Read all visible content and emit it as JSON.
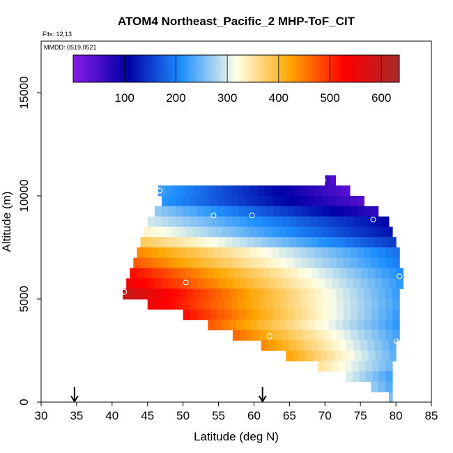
{
  "chart_data": {
    "type": "heatmap",
    "title": "ATOM4 Northeast_Pacific_2 MHP-ToF_CIT",
    "flights_label": "Flts: 12,13",
    "dates_label": "MMDD: 0519,0521",
    "xlabel": "Latitude (deg N)",
    "ylabel": "Altitude (m)",
    "xlim": [
      30,
      85
    ],
    "ylim": [
      0,
      17500
    ],
    "x_ticks": [
      "30",
      "35",
      "40",
      "45",
      "50",
      "55",
      "60",
      "65",
      "70",
      "75",
      "80",
      "85"
    ],
    "y_ticks": [
      "0",
      "5000",
      "10000",
      "15000"
    ],
    "colorbar": {
      "range": [
        0,
        635
      ],
      "ticks": [
        "100",
        "200",
        "300",
        "400",
        "500",
        "600"
      ],
      "colors": [
        "#8a1ae8",
        "#0000a6",
        "#1e90ff",
        "#ffffe6",
        "#ffa500",
        "#ff0000",
        "#a52a2a"
      ]
    },
    "arrows_latitude": [
      34.7,
      61.2
    ],
    "rows": [
      {
        "alt": 10750,
        "x0": 70,
        "x1": 71.5,
        "v0": 55,
        "v1": 45
      },
      {
        "alt": 10250,
        "x0": 46.5,
        "x1": 73.5,
        "v0": 225,
        "v1": 40
      },
      {
        "alt": 9750,
        "x0": 47,
        "x1": 75.5,
        "v0": 215,
        "v1": 45
      },
      {
        "alt": 9250,
        "x0": 46,
        "x1": 77.5,
        "v0": 265,
        "v1": 70
      },
      {
        "alt": 8750,
        "x0": 45,
        "x1": 79,
        "v0": 295,
        "v1": 110
      },
      {
        "alt": 8250,
        "x0": 44.5,
        "x1": 79.5,
        "v0": 330,
        "v1": 120
      },
      {
        "alt": 7750,
        "x0": 44,
        "x1": 80,
        "v0": 380,
        "v1": 150
      },
      {
        "alt": 7250,
        "x0": 43.5,
        "x1": 80.5,
        "v0": 440,
        "v1": 190
      },
      {
        "alt": 6750,
        "x0": 43,
        "x1": 80.5,
        "v0": 470,
        "v1": 200
      },
      {
        "alt": 6250,
        "x0": 42.5,
        "x1": 81,
        "v0": 520,
        "v1": 210
      },
      {
        "alt": 5750,
        "x0": 42,
        "x1": 81,
        "v0": 545,
        "v1": 220
      },
      {
        "alt": 5250,
        "x0": 41.5,
        "x1": 80.5,
        "v0": 590,
        "v1": 225
      },
      {
        "alt": 4750,
        "x0": 45,
        "x1": 80.5,
        "v0": 550,
        "v1": 230
      },
      {
        "alt": 4250,
        "x0": 50,
        "x1": 80.5,
        "v0": 520,
        "v1": 225
      },
      {
        "alt": 3750,
        "x0": 53.5,
        "x1": 80.5,
        "v0": 470,
        "v1": 220
      },
      {
        "alt": 3250,
        "x0": 57,
        "x1": 80.5,
        "v0": 460,
        "v1": 230
      },
      {
        "alt": 2750,
        "x0": 61,
        "x1": 80,
        "v0": 440,
        "v1": 240
      },
      {
        "alt": 2250,
        "x0": 64.5,
        "x1": 80,
        "v0": 420,
        "v1": 245
      },
      {
        "alt": 1750,
        "x0": 69,
        "x1": 79.5,
        "v0": 350,
        "v1": 250
      },
      {
        "alt": 1250,
        "x0": 73,
        "x1": 79.5,
        "v0": 300,
        "v1": 230
      },
      {
        "alt": 750,
        "x0": 76.5,
        "x1": 79.5,
        "v0": 265,
        "v1": 240
      },
      {
        "alt": 250,
        "x0": 79,
        "x1": 79.5,
        "v0": 255,
        "v1": 255
      }
    ],
    "markers": [
      {
        "lat": 46.7,
        "alt": 10250
      },
      {
        "lat": 54.3,
        "alt": 9050
      },
      {
        "lat": 59.7,
        "alt": 9050
      },
      {
        "lat": 69.7,
        "alt": 10750
      },
      {
        "lat": 76.8,
        "alt": 8850
      },
      {
        "lat": 41.7,
        "alt": 5350
      },
      {
        "lat": 50.4,
        "alt": 5800
      },
      {
        "lat": 62.2,
        "alt": 3200
      },
      {
        "lat": 80.1,
        "alt": 2950
      },
      {
        "lat": 80.5,
        "alt": 6100
      }
    ]
  }
}
